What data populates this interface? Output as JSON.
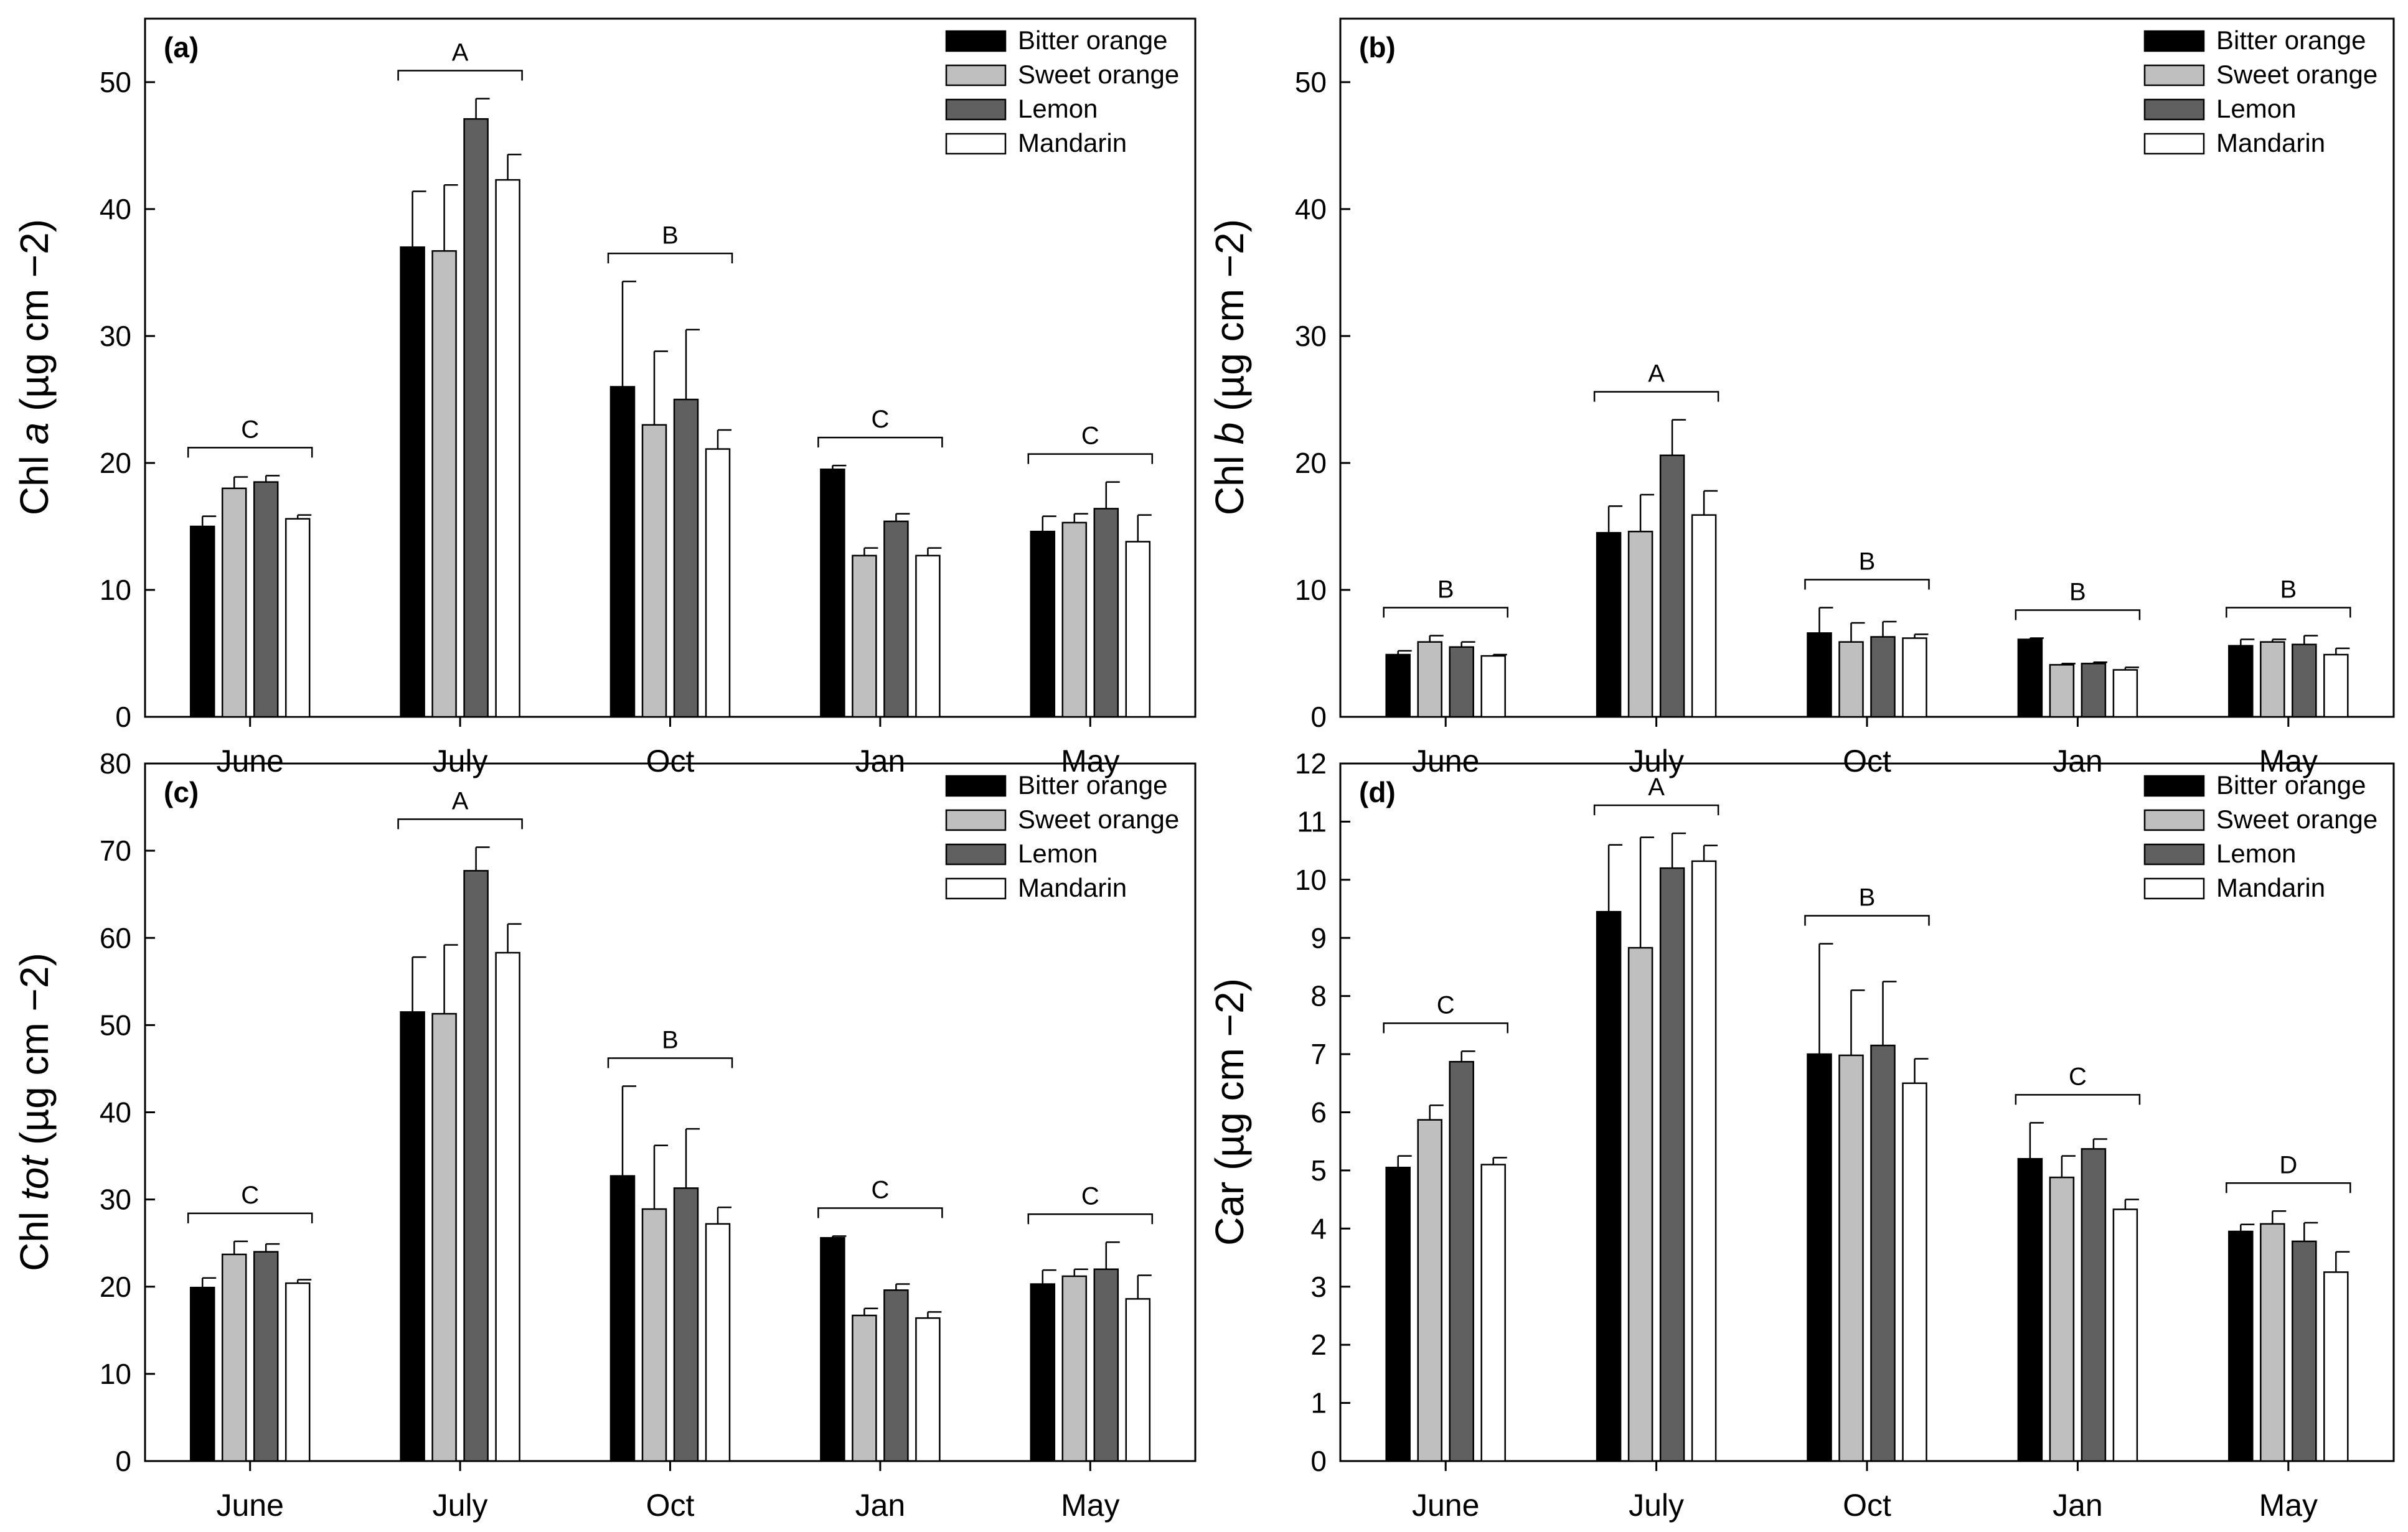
{
  "colors": {
    "bitter_orange": "#000000",
    "sweet_orange": "#bfbfbf",
    "lemon": "#606060",
    "mandarin": "#ffffff",
    "axis": "#000000"
  },
  "chart_data": [
    {
      "type": "bar",
      "panel_label": "(a)",
      "ylabel_main": "Chl ",
      "ylabel_italic": "a",
      "ylabel_unit": " (µg cm −2)",
      "ylim": [
        0,
        55
      ],
      "yticks": [
        0,
        10,
        20,
        30,
        40,
        50
      ],
      "categories": [
        "June",
        "July",
        "Oct",
        "Jan",
        "May"
      ],
      "legend_position": "top-right",
      "series": [
        {
          "name": "Bitter orange",
          "values": [
            15.0,
            37.0,
            26.0,
            19.5,
            14.6
          ],
          "errors": [
            0.8,
            4.4,
            8.3,
            0.3,
            1.2
          ]
        },
        {
          "name": "Sweet orange",
          "values": [
            18.0,
            36.7,
            23.0,
            12.7,
            15.3
          ],
          "errors": [
            0.9,
            5.2,
            5.8,
            0.6,
            0.7
          ]
        },
        {
          "name": "Lemon",
          "values": [
            18.5,
            47.1,
            25.0,
            15.4,
            16.4
          ],
          "errors": [
            0.5,
            1.6,
            5.5,
            0.6,
            2.1
          ]
        },
        {
          "name": "Mandarin",
          "values": [
            15.6,
            42.3,
            21.1,
            12.7,
            13.8
          ],
          "errors": [
            0.3,
            2.0,
            1.5,
            0.6,
            2.1
          ]
        }
      ],
      "group_letters": [
        "C",
        "A",
        "B",
        "C",
        "C"
      ]
    },
    {
      "type": "bar",
      "panel_label": "(b)",
      "ylabel_main": "Chl ",
      "ylabel_italic": "b",
      "ylabel_unit": " (µg cm −2)",
      "ylim": [
        0,
        55
      ],
      "yticks": [
        0,
        10,
        20,
        30,
        40,
        50
      ],
      "categories": [
        "June",
        "July",
        "Oct",
        "Jan",
        "May"
      ],
      "legend_position": "top-right",
      "series": [
        {
          "name": "Bitter orange",
          "values": [
            4.9,
            14.5,
            6.6,
            6.1,
            5.6
          ],
          "errors": [
            0.3,
            2.1,
            2.0,
            0.1,
            0.5
          ]
        },
        {
          "name": "Sweet orange",
          "values": [
            5.9,
            14.6,
            5.9,
            4.1,
            5.9
          ],
          "errors": [
            0.5,
            2.9,
            1.5,
            0.1,
            0.2
          ]
        },
        {
          "name": "Lemon",
          "values": [
            5.5,
            20.6,
            6.3,
            4.2,
            5.7
          ],
          "errors": [
            0.4,
            2.8,
            1.2,
            0.1,
            0.7
          ]
        },
        {
          "name": "Mandarin",
          "values": [
            4.8,
            15.9,
            6.2,
            3.7,
            4.9
          ],
          "errors": [
            0.1,
            1.9,
            0.3,
            0.2,
            0.5
          ]
        }
      ],
      "group_letters": [
        "B",
        "A",
        "B",
        "B",
        "B"
      ]
    },
    {
      "type": "bar",
      "panel_label": "(c)",
      "ylabel_main": "Chl ",
      "ylabel_italic": "tot",
      "ylabel_unit": " (µg cm −2)",
      "ylim": [
        0,
        80
      ],
      "yticks": [
        0,
        10,
        20,
        30,
        40,
        50,
        60,
        70,
        80
      ],
      "categories": [
        "June",
        "July",
        "Oct",
        "Jan",
        "May"
      ],
      "legend_position": "top-right",
      "series": [
        {
          "name": "Bitter orange",
          "values": [
            19.9,
            51.5,
            32.7,
            25.6,
            20.3
          ],
          "errors": [
            1.1,
            6.3,
            10.3,
            0.2,
            1.6
          ]
        },
        {
          "name": "Sweet orange",
          "values": [
            23.7,
            51.3,
            28.9,
            16.7,
            21.2
          ],
          "errors": [
            1.5,
            7.9,
            7.3,
            0.8,
            0.8
          ]
        },
        {
          "name": "Lemon",
          "values": [
            24.0,
            67.7,
            31.3,
            19.6,
            22.0
          ],
          "errors": [
            0.9,
            2.7,
            6.8,
            0.7,
            3.1
          ]
        },
        {
          "name": "Mandarin",
          "values": [
            20.4,
            58.3,
            27.2,
            16.4,
            18.6
          ],
          "errors": [
            0.4,
            3.3,
            1.9,
            0.7,
            2.7
          ]
        }
      ],
      "group_letters": [
        "C",
        "A",
        "B",
        "C",
        "C"
      ]
    },
    {
      "type": "bar",
      "panel_label": "(d)",
      "ylabel_main": "Car",
      "ylabel_italic": "",
      "ylabel_unit": " (µg cm −2)",
      "ylim": [
        0,
        12
      ],
      "yticks": [
        0,
        1,
        2,
        3,
        4,
        5,
        6,
        7,
        8,
        9,
        10,
        11,
        12
      ],
      "categories": [
        "June",
        "July",
        "Oct",
        "Jan",
        "May"
      ],
      "legend_position": "top-right",
      "series": [
        {
          "name": "Bitter orange",
          "values": [
            5.05,
            9.45,
            7.0,
            5.2,
            3.95
          ],
          "errors": [
            0.2,
            1.15,
            1.9,
            0.62,
            0.12
          ]
        },
        {
          "name": "Sweet orange",
          "values": [
            5.87,
            8.83,
            6.98,
            4.88,
            4.08
          ],
          "errors": [
            0.25,
            1.9,
            1.12,
            0.37,
            0.22
          ]
        },
        {
          "name": "Lemon",
          "values": [
            6.87,
            10.2,
            7.15,
            5.37,
            3.78
          ],
          "errors": [
            0.18,
            0.6,
            1.1,
            0.17,
            0.32
          ]
        },
        {
          "name": "Mandarin",
          "values": [
            5.1,
            10.32,
            6.5,
            4.33,
            3.25
          ],
          "errors": [
            0.12,
            0.27,
            0.42,
            0.17,
            0.35
          ]
        }
      ],
      "group_letters": [
        "C",
        "A",
        "B",
        "C",
        "D"
      ]
    }
  ]
}
